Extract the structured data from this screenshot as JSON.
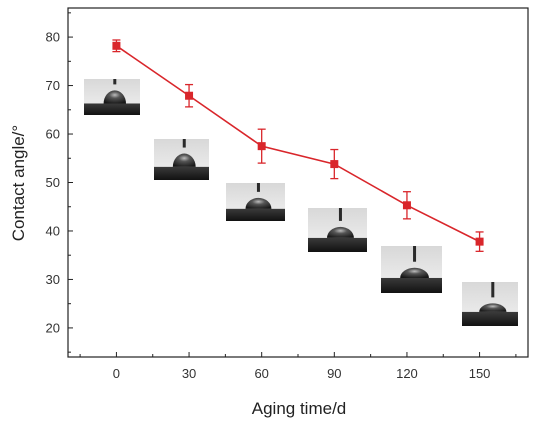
{
  "chart_data": {
    "type": "line",
    "xlabel": "Aging time/d",
    "ylabel": "Contact angle/°",
    "xlim": [
      -20,
      170
    ],
    "ylim": [
      14,
      86
    ],
    "xticks": [
      0,
      30,
      60,
      90,
      120,
      150
    ],
    "yticks": [
      20,
      30,
      40,
      50,
      60,
      70,
      80
    ],
    "grid": false,
    "series": [
      {
        "x": [
          0,
          30,
          60,
          90,
          120,
          150
        ],
        "y": [
          78.2,
          67.9,
          57.5,
          53.8,
          45.3,
          37.8
        ],
        "error": [
          1.2,
          2.3,
          3.5,
          3.0,
          2.8,
          2.0
        ],
        "color": "#d9262b",
        "marker": "square"
      }
    ],
    "insets": [
      {
        "name": "droplet-photo-day-0",
        "x": 0
      },
      {
        "name": "droplet-photo-day-30",
        "x": 30
      },
      {
        "name": "droplet-photo-day-60",
        "x": 60
      },
      {
        "name": "droplet-photo-day-90",
        "x": 90
      },
      {
        "name": "droplet-photo-day-120",
        "x": 120
      },
      {
        "name": "droplet-photo-day-150",
        "x": 150
      }
    ]
  }
}
